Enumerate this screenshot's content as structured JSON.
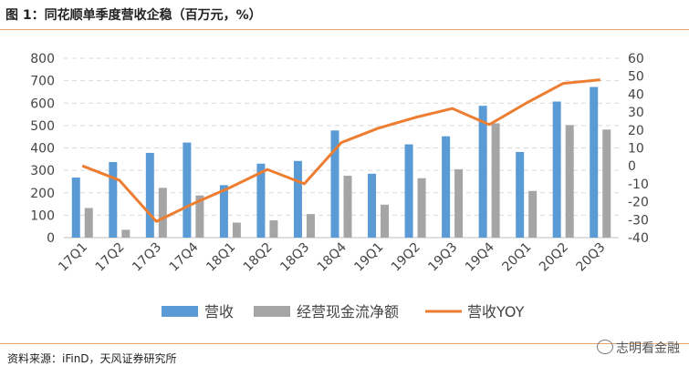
{
  "header": {
    "title": "图 1：同花顺单季度营收企稳（百万元，%）"
  },
  "footer": {
    "source": "资料来源：iFinD，天风证券研究所",
    "watermark": "志明看金融"
  },
  "colors": {
    "revenue": "#5B9BD5",
    "cashflow": "#A5A5A5",
    "yoy": "#ED7D31",
    "rule": "#E8A56A",
    "grid": "#D9D9D9"
  },
  "chart_data": {
    "type": "bar",
    "title": "同花顺单季度营收企稳（百万元，%）",
    "categories": [
      "17Q1",
      "17Q2",
      "17Q3",
      "17Q4",
      "18Q1",
      "18Q2",
      "18Q3",
      "18Q4",
      "19Q1",
      "19Q2",
      "19Q3",
      "19Q4",
      "20Q1",
      "20Q2",
      "20Q3"
    ],
    "series": [
      {
        "name": "营收",
        "type": "bar",
        "axis": "left",
        "values": [
          268,
          337,
          378,
          424,
          234,
          330,
          342,
          478,
          285,
          416,
          452,
          588,
          382,
          607,
          672
        ]
      },
      {
        "name": "经营现金流净额",
        "type": "bar",
        "axis": "left",
        "values": [
          132,
          35,
          222,
          188,
          67,
          77,
          105,
          276,
          147,
          265,
          305,
          510,
          208,
          502,
          482
        ]
      },
      {
        "name": "营收YOY",
        "type": "line",
        "axis": "right",
        "values": [
          0,
          -8,
          -31,
          -21,
          -12,
          -2,
          -10,
          13,
          21,
          27,
          32,
          23,
          35,
          46,
          48
        ]
      }
    ],
    "yleft_ticks": [
      0,
      100,
      200,
      300,
      400,
      500,
      600,
      700,
      800
    ],
    "yright_ticks": [
      -40,
      -30,
      -20,
      -10,
      0,
      10,
      20,
      30,
      40,
      50,
      60
    ],
    "ylim_left": [
      0,
      800
    ],
    "ylim_right": [
      -40,
      60
    ],
    "grid": true,
    "legend_position": "bottom"
  }
}
